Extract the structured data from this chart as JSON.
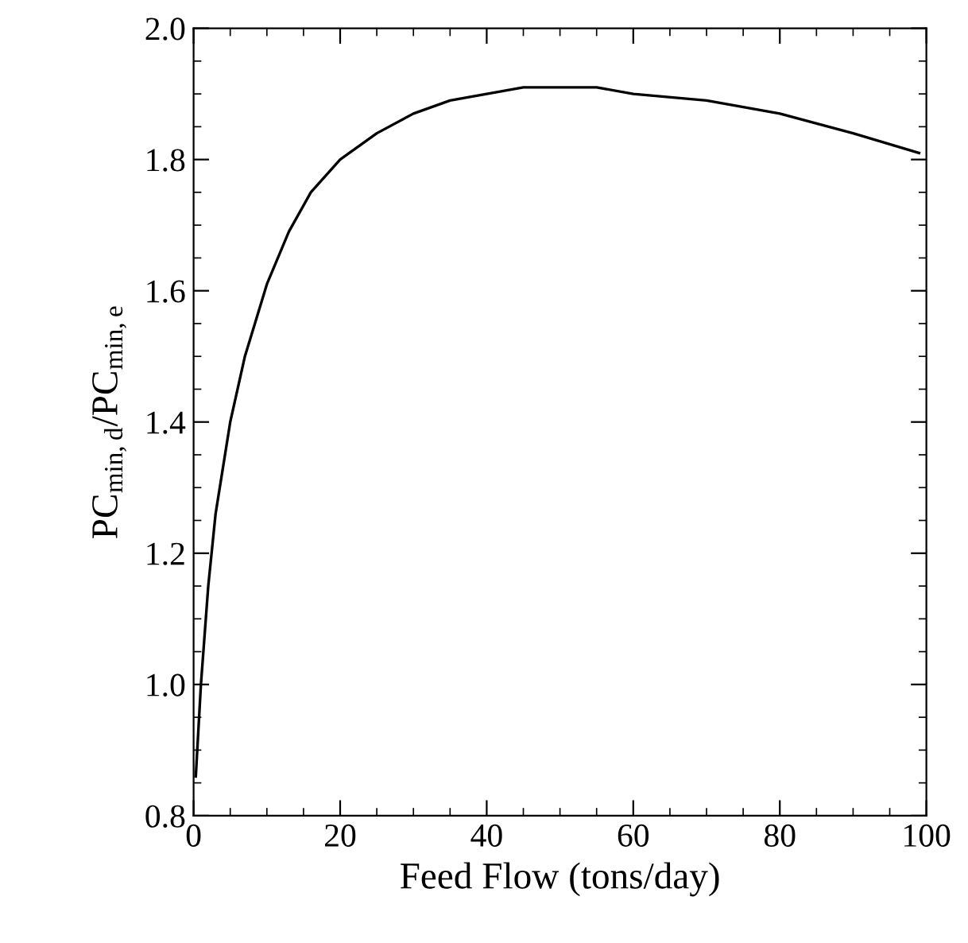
{
  "chart_data": {
    "type": "line",
    "xlabel": "Feed Flow (tons/day)",
    "ylabel": "PC$_{min,d}$/PC$_{min,e}$",
    "xlim": [
      0,
      100
    ],
    "ylim": [
      0.8,
      2.0
    ],
    "xticks": [
      0,
      20,
      40,
      60,
      80,
      100
    ],
    "yticks": [
      0.8,
      {
        "value": 1,
        "label": "1.0"
      },
      1.2,
      1.4,
      1.6,
      1.8,
      {
        "value": 2,
        "label": "2.0"
      }
    ],
    "grid": false,
    "marker": "none",
    "line_style": "solid",
    "series": [
      {
        "color": "#000000",
        "x": [
          0.3,
          1,
          2,
          3,
          5,
          7,
          10,
          13,
          16,
          20,
          25,
          30,
          35,
          40,
          45,
          50,
          55,
          60,
          70,
          80,
          90,
          99
        ],
        "values": [
          0.86,
          1.0,
          1.15,
          1.26,
          1.4,
          1.5,
          1.61,
          1.69,
          1.75,
          1.8,
          1.84,
          1.87,
          1.89,
          1.9,
          1.91,
          1.91,
          1.91,
          1.9,
          1.89,
          1.87,
          1.84,
          1.81
        ]
      }
    ]
  }
}
